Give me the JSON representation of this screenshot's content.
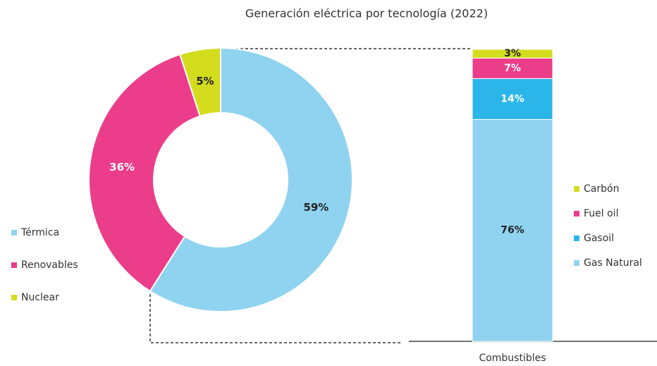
{
  "chart_data": [
    {
      "type": "donut",
      "title": "Generación eléctrica por tecnología (2022)",
      "categories": [
        "Térmica",
        "Renovables",
        "Nuclear"
      ],
      "values": [
        59,
        36,
        5
      ],
      "value_labels": [
        "59%",
        "36%",
        "5%"
      ],
      "colors": [
        "#8fd3f0",
        "#ec3d8a",
        "#d4dc1e"
      ]
    },
    {
      "type": "stacked_bar",
      "categories": [
        "Combustibles"
      ],
      "series": [
        {
          "name": "Gas Natural",
          "color": "#8fd3f0",
          "values": [
            76
          ],
          "value_labels": [
            "76%"
          ]
        },
        {
          "name": "Gasoil",
          "color": "#2bb5e8",
          "values": [
            14
          ],
          "value_labels": [
            "14%"
          ]
        },
        {
          "name": "Fuel oil",
          "color": "#ec3d8a",
          "values": [
            7
          ],
          "value_labels": [
            "7%"
          ]
        },
        {
          "name": "Carbón",
          "color": "#d4dc1e",
          "values": [
            3
          ],
          "value_labels": [
            "3%"
          ]
        }
      ]
    }
  ]
}
